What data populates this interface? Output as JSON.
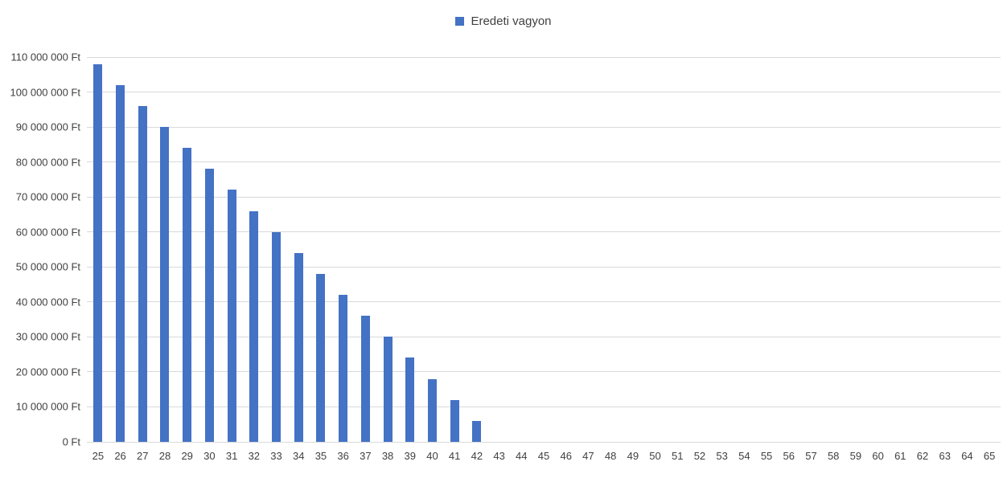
{
  "colors": {
    "bar": "#4472C4",
    "gridline": "#d9d9d9",
    "text": "#404040",
    "background": "#ffffff"
  },
  "legend": {
    "label": "Eredeti vagyon",
    "marker_color": "#4472C4",
    "position": "top-center"
  },
  "chart_data": {
    "type": "bar",
    "title": "",
    "xlabel": "",
    "ylabel": "",
    "grid": true,
    "ylim": [
      0,
      110000000
    ],
    "y_tick_step": 10000000,
    "y_tick_labels": [
      "0 Ft",
      "10 000 000 Ft",
      "20 000 000 Ft",
      "30 000 000 Ft",
      "40 000 000 Ft",
      "50 000 000 Ft",
      "60 000 000 Ft",
      "70 000 000 Ft",
      "80 000 000 Ft",
      "90 000 000 Ft",
      "100 000 000 Ft",
      "110 000 000 Ft"
    ],
    "categories": [
      "25",
      "26",
      "27",
      "28",
      "29",
      "30",
      "31",
      "32",
      "33",
      "34",
      "35",
      "36",
      "37",
      "38",
      "39",
      "40",
      "41",
      "42",
      "43",
      "44",
      "45",
      "46",
      "47",
      "48",
      "49",
      "50",
      "51",
      "52",
      "53",
      "54",
      "55",
      "56",
      "57",
      "58",
      "59",
      "60",
      "61",
      "62",
      "63",
      "64",
      "65"
    ],
    "series": [
      {
        "name": "Eredeti vagyon",
        "values": [
          108000000,
          102000000,
          96000000,
          90000000,
          84000000,
          78000000,
          72000000,
          66000000,
          60000000,
          54000000,
          48000000,
          42000000,
          36000000,
          30000000,
          24000000,
          18000000,
          12000000,
          6000000,
          0,
          0,
          0,
          0,
          0,
          0,
          0,
          0,
          0,
          0,
          0,
          0,
          0,
          0,
          0,
          0,
          0,
          0,
          0,
          0,
          0,
          0,
          0
        ]
      }
    ]
  }
}
